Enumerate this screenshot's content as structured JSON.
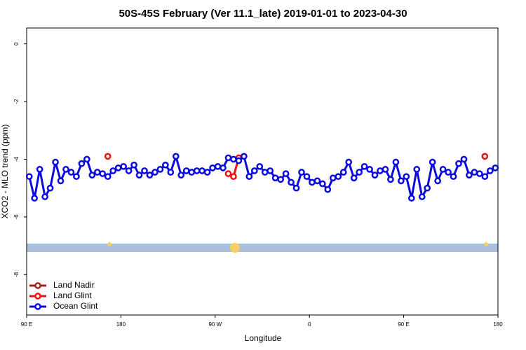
{
  "chart_data": {
    "type": "line",
    "title": "50S-45S February (Ver 11.1_late)   2019-01-01 to 2023-04-30",
    "x_label": "Longitude",
    "y_label": "XCO2 - MLO trend (ppm)",
    "xlim": [
      90,
      540
    ],
    "xticks": [
      {
        "value": 90,
        "label": "90 E"
      },
      {
        "value": 180,
        "label": "180"
      },
      {
        "value": 270,
        "label": "90 W"
      },
      {
        "value": 360,
        "label": "0"
      },
      {
        "value": 450,
        "label": "90 E"
      },
      {
        "value": 540,
        "label": "180"
      }
    ],
    "ylim": [
      -9.4,
      0.55
    ],
    "yticks": [
      0,
      -2,
      -4,
      -6,
      -8
    ],
    "legend": "bottom-left",
    "series": [
      {
        "name": "Land Nadir",
        "color": "#9b2323",
        "x": [],
        "values": []
      },
      {
        "name": "Land Glint",
        "color": "#ee1111",
        "x": [
          167.5,
          232.5,
          282.5,
          287.5,
          292.5,
          412.5,
          527.5
        ],
        "values": [
          -3.9,
          null,
          -4.5,
          -4.6,
          -3.95,
          null,
          -3.9
        ]
      },
      {
        "name": "Ocean Glint",
        "color": "#0b0bdd",
        "x": [
          92.5,
          97.5,
          102.5,
          107.5,
          112.5,
          117.5,
          122.5,
          127.5,
          132.5,
          137.5,
          142.5,
          147.5,
          152.5,
          157.5,
          162.5,
          167.5,
          172.5,
          177.5,
          182.5,
          187.5,
          192.5,
          197.5,
          202.5,
          207.5,
          212.5,
          217.5,
          222.5,
          227.5,
          232.5,
          237.5,
          242.5,
          247.5,
          252.5,
          257.5,
          262.5,
          267.5,
          272.5,
          277.5,
          282.5,
          287.5,
          292.5,
          297.5,
          302.5,
          307.5,
          312.5,
          317.5,
          322.5,
          327.5,
          332.5,
          337.5,
          342.5,
          347.5,
          352.5,
          357.5,
          362.5,
          367.5,
          372.5,
          377.5,
          382.5,
          387.5,
          392.5,
          397.5,
          402.5,
          407.5,
          412.5,
          417.5,
          422.5,
          427.5,
          432.5,
          437.5,
          442.5,
          447.5,
          452.5,
          457.5,
          462.5,
          467.5,
          472.5,
          477.5,
          482.5,
          487.5,
          492.5,
          497.5,
          502.5,
          507.5,
          512.5,
          517.5,
          522.5,
          527.5,
          532.5,
          537.5
        ],
        "values": [
          -4.6,
          -5.35,
          -4.35,
          -5.3,
          -5.0,
          -4.1,
          -4.75,
          -4.35,
          -4.45,
          -4.6,
          -4.15,
          -4.0,
          -4.55,
          -4.45,
          -4.5,
          -4.6,
          -4.4,
          -4.3,
          -4.25,
          -4.4,
          -4.2,
          -4.55,
          -4.4,
          -4.55,
          -4.45,
          -4.35,
          -4.2,
          -4.45,
          -3.9,
          -4.55,
          -4.4,
          -4.45,
          -4.4,
          -4.4,
          -4.45,
          -4.3,
          -4.25,
          -4.3,
          -3.95,
          -4.0,
          -4.05,
          -3.9,
          -4.6,
          -4.4,
          -4.25,
          -4.45,
          -4.4,
          -4.65,
          -4.7,
          -4.5,
          -4.8,
          -5.0,
          -4.45,
          -4.6,
          -4.8,
          -4.75,
          -4.85,
          -5.05,
          -4.65,
          -4.6,
          -4.45,
          -4.1,
          -4.65,
          -4.45,
          -4.25,
          -4.35,
          -4.55,
          -4.4,
          -4.35,
          -4.7,
          -4.1,
          -4.75,
          -4.6,
          -5.35,
          -4.35,
          -5.3,
          -5.0,
          -4.1,
          -4.75,
          -4.35,
          -4.45,
          -4.6,
          -4.15,
          -4.0,
          -4.55,
          -4.45,
          -4.5,
          -4.6,
          -4.4,
          -4.3
        ]
      }
    ]
  }
}
